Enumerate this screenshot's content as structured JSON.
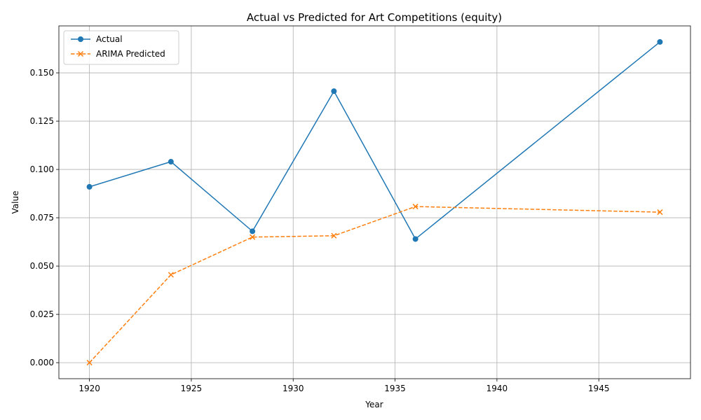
{
  "chart_data": {
    "type": "line",
    "title": "Actual vs Predicted for Art Competitions (equity)",
    "xlabel": "Year",
    "ylabel": "Value",
    "xlim": [
      1918.5,
      1949.5
    ],
    "ylim": [
      -0.0083,
      0.1743
    ],
    "xticks": [
      1920,
      1925,
      1930,
      1935,
      1940,
      1945
    ],
    "yticks": [
      0.0,
      0.025,
      0.05,
      0.075,
      0.1,
      0.125,
      0.15
    ],
    "ytick_labels": [
      "0.000",
      "0.025",
      "0.050",
      "0.075",
      "0.100",
      "0.125",
      "0.150"
    ],
    "grid": true,
    "legend_position": "top-left",
    "x": [
      1920,
      1924,
      1928,
      1932,
      1936,
      1948
    ],
    "series": [
      {
        "name": "Actual",
        "values": [
          0.091,
          0.104,
          0.068,
          0.1405,
          0.064,
          0.166
        ],
        "color": "#1f77b4",
        "marker": "circle",
        "linestyle": "solid"
      },
      {
        "name": "ARIMA Predicted",
        "values": [
          0.0,
          0.0455,
          0.065,
          0.0657,
          0.0808,
          0.0779
        ],
        "color": "#ff7f0e",
        "marker": "x",
        "linestyle": "dashed"
      }
    ]
  }
}
